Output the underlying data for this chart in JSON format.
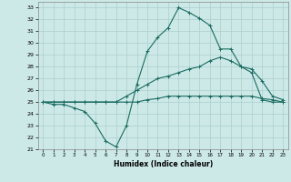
{
  "xlabel": "Humidex (Indice chaleur)",
  "bg_color": "#cce9e8",
  "grid_color": "#aacfcd",
  "line_color": "#1a6b60",
  "xlim": [
    -0.5,
    23.5
  ],
  "ylim": [
    21,
    33.5
  ],
  "xticks": [
    0,
    1,
    2,
    3,
    4,
    5,
    6,
    7,
    8,
    9,
    10,
    11,
    12,
    13,
    14,
    15,
    16,
    17,
    18,
    19,
    20,
    21,
    22,
    23
  ],
  "yticks": [
    21,
    22,
    23,
    24,
    25,
    26,
    27,
    28,
    29,
    30,
    31,
    32,
    33
  ],
  "line1_x": [
    0,
    1,
    2,
    3,
    4,
    5,
    6,
    7,
    8,
    9,
    10,
    11,
    12,
    13,
    14,
    15,
    16,
    17,
    18,
    19,
    20,
    21,
    22,
    23
  ],
  "line1_y": [
    25.0,
    24.8,
    24.8,
    24.5,
    24.2,
    23.2,
    21.7,
    21.2,
    23.0,
    26.5,
    29.3,
    30.5,
    31.3,
    33.0,
    32.6,
    32.1,
    31.5,
    29.5,
    29.5,
    28.0,
    27.5,
    25.2,
    25.0,
    25.0
  ],
  "line2_x": [
    0,
    1,
    2,
    3,
    4,
    5,
    6,
    7,
    8,
    9,
    10,
    11,
    12,
    13,
    14,
    15,
    16,
    17,
    18,
    19,
    20,
    21,
    22,
    23
  ],
  "line2_y": [
    25.0,
    25.0,
    25.0,
    25.0,
    25.0,
    25.0,
    25.0,
    25.0,
    25.5,
    26.0,
    26.5,
    27.0,
    27.2,
    27.5,
    27.8,
    28.0,
    28.5,
    28.8,
    28.5,
    28.0,
    27.8,
    26.8,
    25.5,
    25.2
  ],
  "line3_x": [
    0,
    1,
    2,
    3,
    4,
    5,
    6,
    7,
    8,
    9,
    10,
    11,
    12,
    13,
    14,
    15,
    16,
    17,
    18,
    19,
    20,
    21,
    22,
    23
  ],
  "line3_y": [
    25.0,
    25.0,
    25.0,
    25.0,
    25.0,
    25.0,
    25.0,
    25.0,
    25.0,
    25.0,
    25.2,
    25.3,
    25.5,
    25.5,
    25.5,
    25.5,
    25.5,
    25.5,
    25.5,
    25.5,
    25.5,
    25.3,
    25.2,
    25.0
  ]
}
